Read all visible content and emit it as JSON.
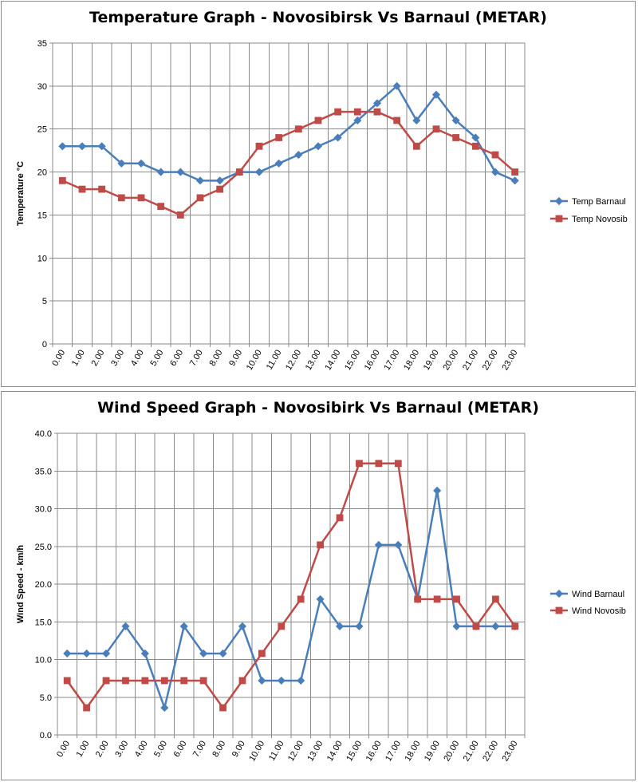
{
  "chart_data": [
    {
      "type": "line",
      "title": "Temperature Graph - Novosibirsk Vs Barnaul (METAR)",
      "ylabel": "Temperature °C",
      "xlabel": "",
      "categories": [
        "0.00",
        "1.00",
        "2.00",
        "3.00",
        "4.00",
        "5.00",
        "6.00",
        "7.00",
        "8.00",
        "9.00",
        "10.00",
        "11.00",
        "12.00",
        "13.00",
        "14.00",
        "15.00",
        "16.00",
        "17.00",
        "18.00",
        "19.00",
        "20.00",
        "21.00",
        "22.00",
        "23.00"
      ],
      "ylim": [
        0,
        35
      ],
      "yticks": [
        "0",
        "5",
        "10",
        "15",
        "20",
        "25",
        "30",
        "35"
      ],
      "grid": true,
      "legend": "right",
      "series": [
        {
          "name": "Temp Barnaul",
          "color": "#4A7EBB",
          "marker": "diamond",
          "values": [
            23,
            23,
            23,
            21,
            21,
            20,
            20,
            19,
            19,
            20,
            20,
            21,
            22,
            23,
            24,
            26,
            28,
            30,
            26,
            29,
            26,
            24,
            20,
            19
          ]
        },
        {
          "name": "Temp Novosib",
          "color": "#BE4B48",
          "marker": "square",
          "values": [
            19,
            18,
            18,
            17,
            17,
            16,
            15,
            17,
            18,
            20,
            23,
            24,
            25,
            26,
            27,
            27,
            27,
            26,
            23,
            25,
            24,
            23,
            22,
            20
          ]
        }
      ]
    },
    {
      "type": "line",
      "title": "Wind Speed Graph - Novosibirk Vs Barnaul (METAR)",
      "ylabel": "Wind Speed - km/h",
      "xlabel": "",
      "categories": [
        "0.00",
        "1.00",
        "2.00",
        "3.00",
        "4.00",
        "5.00",
        "6.00",
        "7.00",
        "8.00",
        "9.00",
        "10.00",
        "11.00",
        "12.00",
        "13.00",
        "14.00",
        "15.00",
        "16.00",
        "17.00",
        "18.00",
        "19.00",
        "20.00",
        "21.00",
        "22.00",
        "23.00"
      ],
      "ylim": [
        0,
        40
      ],
      "yticks": [
        "0.0",
        "5.0",
        "10.0",
        "15.0",
        "20.0",
        "25.0",
        "30.0",
        "35.0",
        "40.0"
      ],
      "grid": true,
      "legend": "right",
      "series": [
        {
          "name": "Wind Barnaul",
          "color": "#4A7EBB",
          "marker": "diamond",
          "values": [
            10.8,
            10.8,
            10.8,
            14.4,
            10.8,
            3.6,
            14.4,
            10.8,
            10.8,
            14.4,
            7.2,
            7.2,
            7.2,
            18.0,
            14.4,
            14.4,
            25.2,
            25.2,
            18.0,
            32.4,
            14.4,
            14.4,
            14.4,
            14.4
          ]
        },
        {
          "name": "Wind Novosib",
          "color": "#BE4B48",
          "marker": "square",
          "values": [
            7.2,
            3.6,
            7.2,
            7.2,
            7.2,
            7.2,
            7.2,
            7.2,
            3.6,
            7.2,
            10.8,
            14.4,
            18.0,
            25.2,
            28.8,
            36.0,
            36.0,
            36.0,
            18.0,
            18.0,
            18.0,
            14.4,
            18.0,
            14.4
          ]
        }
      ]
    }
  ]
}
